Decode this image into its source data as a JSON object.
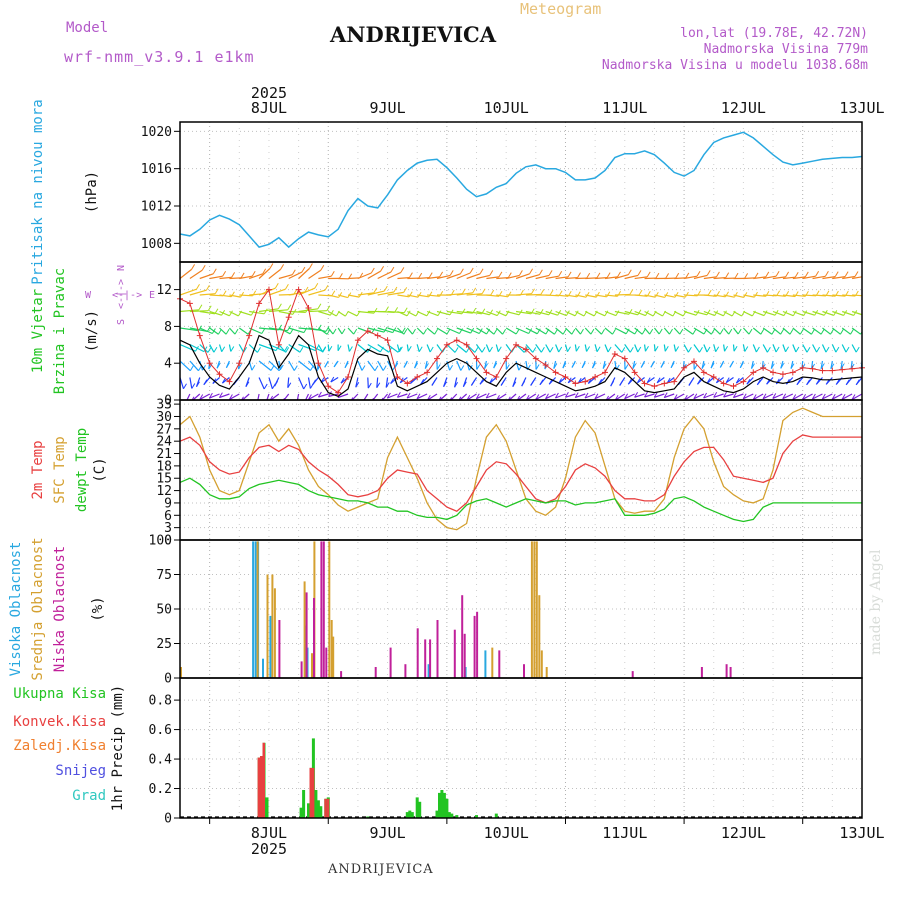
{
  "header": {
    "model_label": "Model",
    "model_name": "wrf-nmm_v3.9.1 e1km",
    "station": "ANDRIJEVICA",
    "meteogram_label": "Meteogram",
    "lonlat": "lon,lat (19.78E, 42.72N)",
    "altitude": "Nadmorska Visina 779m",
    "model_altitude": "Nadmorska Visina u modelu 1038.68m",
    "footer_station": "ANDRIJEVICA",
    "signature": "made by Angel"
  },
  "time_axis": {
    "year": "2025",
    "day_labels": [
      "8JUL",
      "9JUL",
      "10JUL",
      "11JUL",
      "12JUL",
      "13JUL"
    ],
    "start_hour_offset": -6,
    "end_hour_offset": 132
  },
  "colors": {
    "pressure": "#29a8e0",
    "wind_speed": "#000000",
    "gust": "#e03030",
    "temp2m": "#e84040",
    "sfc_temp": "#d4a030",
    "dewpoint": "#22c422",
    "cloud_high": "#29a8e0",
    "cloud_mid": "#d4a030",
    "cloud_low": "#c0209a",
    "total_precip": "#22c422",
    "conv_precip": "#e84040",
    "freezing": "#f08030",
    "snow": "#5050e0",
    "graupel": "#30c8c0",
    "labels_purple": "#b35ac9"
  },
  "panels": {
    "pressure": {
      "label": "Pritisak na nivou mora",
      "unit": "(hPa)",
      "ticks": [
        "1008",
        "1012",
        "1016",
        "1020"
      ]
    },
    "wind": {
      "label_line1": "10m Vjetar",
      "label_line2": "Brzina i Pravac",
      "unit": "(m/s)",
      "ticks": [
        "0",
        "4",
        "8",
        "12"
      ],
      "compass": {
        "n": "N",
        "s": "S",
        "w": "W",
        "e": "E"
      }
    },
    "temperature": {
      "label_2m": "2m Temp",
      "label_sfc": "SFC Temp",
      "label_dew": "dewpt Temp",
      "unit": "(C)",
      "ticks": [
        "0",
        "3",
        "6",
        "9",
        "12",
        "15",
        "18",
        "21",
        "24",
        "27",
        "30",
        "33"
      ]
    },
    "clouds": {
      "label_high": "Visoka Oblacnost",
      "label_mid": "Srednja Oblacnost",
      "label_low": "Niska Oblacnost",
      "unit": "(%)",
      "ticks": [
        "0",
        "25",
        "50",
        "75",
        "100"
      ]
    },
    "precip": {
      "label_total": "Ukupna Kisa",
      "label_conv": "Konvek.Kisa",
      "label_freezing": "Zaledj.Kisa",
      "label_snow": "Snijeg",
      "label_graupel": "Grad",
      "unit": "1hr Precip (mm)",
      "ticks": [
        "0",
        "0.2",
        "0.4",
        "0.6",
        "0.8"
      ]
    }
  },
  "chart_data": [
    {
      "type": "line",
      "name": "pressure",
      "ylim": [
        1006,
        1021
      ],
      "x": [
        -6,
        -4,
        -2,
        0,
        2,
        4,
        6,
        8,
        10,
        12,
        14,
        16,
        18,
        20,
        22,
        24,
        26,
        28,
        30,
        32,
        34,
        36,
        38,
        40,
        42,
        44,
        46,
        48,
        50,
        52,
        54,
        56,
        58,
        60,
        62,
        64,
        66,
        68,
        70,
        72,
        74,
        76,
        78,
        80,
        82,
        84,
        86,
        88,
        90,
        92,
        94,
        96,
        98,
        100,
        102,
        104,
        106,
        108,
        110,
        112,
        114,
        116,
        118,
        120,
        122,
        124,
        126,
        128,
        130,
        132
      ],
      "y": [
        1009,
        1008.8,
        1009.5,
        1010.5,
        1011,
        1010.6,
        1010,
        1008.8,
        1007.6,
        1007.9,
        1008.6,
        1007.6,
        1008.5,
        1009.2,
        1008.9,
        1008.7,
        1009.5,
        1011.5,
        1012.8,
        1012,
        1011.8,
        1013.2,
        1014.8,
        1015.8,
        1016.6,
        1016.9,
        1017,
        1016.1,
        1015,
        1013.8,
        1013,
        1013.3,
        1014,
        1014.4,
        1015.5,
        1016.2,
        1016.4,
        1016,
        1016,
        1015.6,
        1014.8,
        1014.8,
        1015,
        1015.8,
        1017.2,
        1017.6,
        1017.6,
        1017.9,
        1017.5,
        1016.6,
        1015.6,
        1015.2,
        1015.8,
        1017.5,
        1018.8,
        1019.3,
        1019.6,
        1019.9,
        1019.3,
        1018.4,
        1017.5,
        1016.7,
        1016.4,
        1016.6,
        1016.8,
        1017,
        1017.1,
        1017.2,
        1017.2,
        1017.3
      ]
    },
    {
      "type": "line",
      "name": "wind speed and gust",
      "ylim": [
        0,
        15
      ],
      "x": [
        -6,
        -4,
        -2,
        0,
        2,
        4,
        6,
        8,
        10,
        12,
        14,
        16,
        18,
        20,
        22,
        24,
        26,
        28,
        30,
        32,
        34,
        36,
        38,
        40,
        42,
        44,
        46,
        48,
        50,
        52,
        54,
        56,
        58,
        60,
        62,
        64,
        66,
        68,
        70,
        72,
        74,
        76,
        78,
        80,
        82,
        84,
        86,
        88,
        90,
        92,
        94,
        96,
        98,
        100,
        102,
        104,
        106,
        108,
        110,
        112,
        114,
        116,
        118,
        120,
        122,
        124,
        126,
        128,
        130,
        132
      ],
      "speed": [
        6.5,
        6,
        4,
        2.5,
        1.6,
        1.2,
        2.5,
        4,
        7,
        6.5,
        3.5,
        5,
        7,
        6,
        2.5,
        0.8,
        0.4,
        1.2,
        4.5,
        5.5,
        5,
        4.8,
        1.5,
        1,
        1.5,
        2,
        3,
        4,
        4.5,
        4,
        3,
        2,
        1.5,
        3,
        4,
        3.5,
        3,
        2.5,
        2,
        1.5,
        1,
        1.2,
        1.5,
        2,
        3.5,
        3,
        2,
        1,
        0.8,
        1,
        1.2,
        2.5,
        3,
        2,
        1.5,
        1,
        0.8,
        1.2,
        2,
        2.5,
        2,
        1.8,
        2,
        2.5,
        2.4,
        2.2,
        2.2,
        2.3,
        2.4,
        2.5
      ],
      "gust": [
        11,
        10.5,
        7,
        4,
        2.8,
        2,
        4,
        7,
        10.5,
        12,
        6,
        9,
        12,
        10,
        4,
        1.5,
        0.8,
        2.5,
        6.5,
        7.5,
        7,
        6.5,
        2.5,
        1.8,
        2.5,
        3,
        4.5,
        6,
        6.5,
        6,
        4.5,
        3,
        2.5,
        4.5,
        6,
        5.5,
        4.5,
        3.8,
        3,
        2.5,
        1.8,
        2,
        2.5,
        3,
        5,
        4.5,
        3,
        1.8,
        1.5,
        1.8,
        2,
        3.5,
        4.2,
        3,
        2.5,
        1.8,
        1.5,
        2,
        3,
        3.5,
        3,
        2.8,
        3,
        3.5,
        3.4,
        3.2,
        3.2,
        3.3,
        3.4,
        3.5
      ]
    },
    {
      "type": "line",
      "name": "temperature",
      "ylim": [
        0,
        34
      ],
      "x": [
        -6,
        -4,
        -2,
        0,
        2,
        4,
        6,
        8,
        10,
        12,
        14,
        16,
        18,
        20,
        22,
        24,
        26,
        28,
        30,
        32,
        34,
        36,
        38,
        40,
        42,
        44,
        46,
        48,
        50,
        52,
        54,
        56,
        58,
        60,
        62,
        64,
        66,
        68,
        70,
        72,
        74,
        76,
        78,
        80,
        82,
        84,
        86,
        88,
        90,
        92,
        94,
        96,
        98,
        100,
        102,
        104,
        106,
        108,
        110,
        112,
        114,
        116,
        118,
        120,
        122,
        124,
        126,
        128,
        130,
        132
      ],
      "t2m": [
        24,
        25,
        23,
        19,
        17,
        16,
        16.5,
        20,
        22.5,
        23,
        21.5,
        23,
        22,
        19,
        17,
        15.5,
        13.5,
        11,
        10.5,
        11,
        12,
        15,
        17,
        16.5,
        16,
        12,
        10,
        8,
        7,
        9,
        13,
        17,
        19,
        18.5,
        16,
        13,
        10,
        9,
        10,
        13,
        17,
        18.5,
        17.5,
        15.5,
        12,
        10,
        10,
        9.5,
        9.5,
        11,
        15.5,
        19,
        21.5,
        22.5,
        22.5,
        19.5,
        15.5,
        15,
        14.5,
        14,
        15,
        21,
        24,
        25.5,
        25,
        25,
        25,
        25,
        25,
        25
      ],
      "sfc": [
        28,
        30,
        25,
        17,
        12,
        11,
        12,
        19,
        26,
        28,
        24,
        27,
        23,
        17,
        13,
        11,
        8.5,
        7,
        8,
        9,
        10,
        20,
        25,
        20,
        15,
        9,
        5,
        3,
        2.5,
        4,
        15,
        25,
        28,
        24,
        17,
        10,
        7,
        6,
        8,
        15,
        25,
        29,
        26,
        18,
        10,
        7,
        6.5,
        7,
        7,
        10,
        20,
        27,
        30,
        27,
        19,
        13,
        11,
        9.5,
        9,
        10,
        17,
        29,
        31,
        32,
        31,
        30,
        30,
        30,
        30,
        30
      ],
      "dew": [
        14,
        15,
        13.5,
        11,
        10,
        10,
        10.5,
        12.5,
        13.5,
        14,
        14.5,
        14,
        13.5,
        12,
        11,
        10.5,
        10,
        9.5,
        9.5,
        9,
        8,
        8,
        7,
        7,
        6,
        5.5,
        5.5,
        5,
        6,
        8.5,
        9.5,
        10,
        9,
        8,
        9,
        10,
        9.5,
        9,
        9.5,
        9.5,
        8.5,
        9,
        9,
        9.5,
        10,
        6,
        6,
        6,
        6.5,
        7.5,
        10,
        10.5,
        9.5,
        8,
        7,
        6,
        5,
        4.5,
        5,
        8,
        9,
        9,
        9,
        9,
        9,
        9,
        9,
        9,
        9,
        9
      ]
    },
    {
      "type": "bar",
      "name": "cloud cover",
      "ylim": [
        0,
        100
      ],
      "high": [
        [
          9,
          99
        ],
        [
          9.5,
          99
        ],
        [
          10,
          99
        ],
        [
          11,
          14
        ],
        [
          12.5,
          45
        ],
        [
          19.5,
          14
        ],
        [
          19.8,
          38
        ],
        [
          20,
          22
        ],
        [
          44.5,
          10
        ],
        [
          52,
          8
        ],
        [
          56,
          20
        ]
      ],
      "mid": [
        [
          -6,
          8
        ],
        [
          9.5,
          99
        ],
        [
          11.5,
          75
        ],
        [
          12.5,
          75
        ],
        [
          13,
          65
        ],
        [
          19,
          70
        ],
        [
          20.5,
          18
        ],
        [
          21,
          99
        ],
        [
          24,
          99
        ],
        [
          24.5,
          42
        ],
        [
          24.8,
          30
        ],
        [
          57,
          22
        ],
        [
          65,
          99
        ],
        [
          65.5,
          99
        ],
        [
          66,
          99
        ],
        [
          66.5,
          60
        ],
        [
          67,
          20
        ],
        [
          68,
          8
        ]
      ],
      "low": [
        [
          13.5,
          42
        ],
        [
          18,
          12
        ],
        [
          19,
          62
        ],
        [
          20.5,
          58
        ],
        [
          22,
          99
        ],
        [
          22.5,
          99
        ],
        [
          23,
          22
        ],
        [
          26,
          5
        ],
        [
          33,
          8
        ],
        [
          36,
          22
        ],
        [
          39,
          10
        ],
        [
          41.5,
          36
        ],
        [
          43,
          28
        ],
        [
          44,
          28
        ],
        [
          45.5,
          42
        ],
        [
          49,
          35
        ],
        [
          50.5,
          60
        ],
        [
          51,
          32
        ],
        [
          53,
          45
        ],
        [
          53.5,
          48
        ],
        [
          58,
          20
        ],
        [
          63,
          10
        ],
        [
          85,
          5
        ],
        [
          99,
          8
        ],
        [
          104,
          10
        ],
        [
          104.8,
          8
        ]
      ]
    },
    {
      "type": "bar",
      "name": "1hr precipitation",
      "ylim": [
        0,
        0.95
      ],
      "total": [
        [
          10,
          0.41
        ],
        [
          10.5,
          0.42
        ],
        [
          11,
          0.51
        ],
        [
          11.6,
          0.14
        ],
        [
          18.5,
          0.07
        ],
        [
          19,
          0.19
        ],
        [
          20,
          0.1
        ],
        [
          20.5,
          0.34
        ],
        [
          21,
          0.54
        ],
        [
          21.5,
          0.19
        ],
        [
          22,
          0.12
        ],
        [
          22.5,
          0.08
        ],
        [
          23.5,
          0.13
        ],
        [
          24,
          0.14
        ],
        [
          32,
          0.01
        ],
        [
          40,
          0.04
        ],
        [
          40.5,
          0.05
        ],
        [
          41,
          0.04
        ],
        [
          42,
          0.14
        ],
        [
          42.5,
          0.11
        ],
        [
          46,
          0.05
        ],
        [
          46.5,
          0.17
        ],
        [
          47,
          0.19
        ],
        [
          47.5,
          0.17
        ],
        [
          48,
          0.13
        ],
        [
          48.5,
          0.04
        ],
        [
          49,
          0.03
        ],
        [
          50,
          0.02
        ],
        [
          54,
          0.02
        ],
        [
          58,
          0.03
        ]
      ],
      "conv": [
        [
          10,
          0.41
        ],
        [
          10.5,
          0.42
        ],
        [
          11,
          0.51
        ],
        [
          20.5,
          0.34
        ],
        [
          21,
          0.34
        ],
        [
          23.5,
          0.13
        ],
        [
          24,
          0.13
        ]
      ],
      "freezing": [],
      "snow": [],
      "graupel": []
    }
  ]
}
